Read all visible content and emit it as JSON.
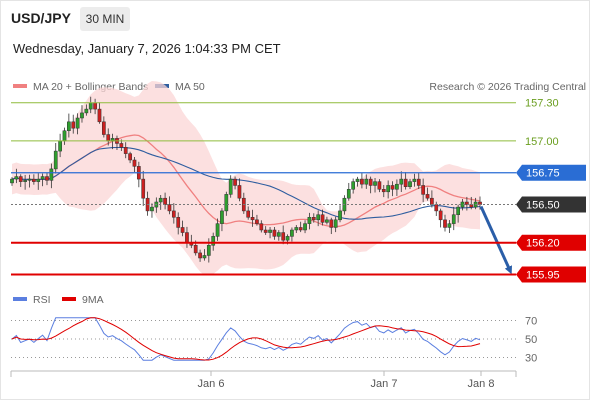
{
  "header": {
    "symbol": "USD/JPY",
    "timeframe": "30 MIN",
    "datetime": "Wednesday, January 7, 2026 1:04:33 PM CET"
  },
  "legend": {
    "items": [
      {
        "label": "MA 20 + Bollinger Bands",
        "color": "#f08080"
      },
      {
        "label": "MA 50",
        "color": "#2e5d9f"
      }
    ],
    "credit": "Research © 2026 Trading Central"
  },
  "rsi_legend": {
    "items": [
      {
        "label": "RSI",
        "color": "#5b7fe0"
      },
      {
        "label": "9MA",
        "color": "#e00000"
      }
    ]
  },
  "chart_data": [
    {
      "type": "candlestick",
      "title": "USD/JPY 30 MIN",
      "x_ticks": [
        "Jan 6",
        "Jan 7",
        "Jan 8"
      ],
      "y_ticks": [
        "157.30",
        "157.00"
      ],
      "ylim": [
        155.86,
        157.4
      ],
      "levels": [
        {
          "value": 157.3,
          "label": "157.30",
          "kind": "resistance",
          "color": "#8fbc3c"
        },
        {
          "value": 157.0,
          "label": "157.00",
          "kind": "resistance",
          "color": "#8fbc3c"
        },
        {
          "value": 156.75,
          "label": "156.75",
          "kind": "pivot",
          "color": "#2a6dd4"
        },
        {
          "value": 156.5,
          "label": "156.50",
          "kind": "last",
          "color": "#333333"
        },
        {
          "value": 156.2,
          "label": "156.20",
          "kind": "support",
          "color": "#e00000"
        },
        {
          "value": 155.95,
          "label": "155.95",
          "kind": "support",
          "color": "#e00000"
        }
      ],
      "forecast_arrow": {
        "from": 156.5,
        "to": 155.95
      },
      "series": [
        {
          "name": "Price",
          "close": [
            156.7,
            156.72,
            156.68,
            156.69,
            156.7,
            156.68,
            156.7,
            156.72,
            156.69,
            156.78,
            156.92,
            157.0,
            157.08,
            157.15,
            157.1,
            157.18,
            157.22,
            157.25,
            157.3,
            157.25,
            157.15,
            157.05,
            157.0,
            157.02,
            156.98,
            156.95,
            156.9,
            156.85,
            156.8,
            156.7,
            156.55,
            156.45,
            156.48,
            156.52,
            156.55,
            156.5,
            156.45,
            156.4,
            156.32,
            156.28,
            156.2,
            156.18,
            156.12,
            156.08,
            156.1,
            156.18,
            156.25,
            156.35,
            156.45,
            156.58,
            156.7,
            156.65,
            156.55,
            156.45,
            156.4,
            156.38,
            156.35,
            156.3,
            156.28,
            156.3,
            156.25,
            156.28,
            156.22,
            156.25,
            156.3,
            156.32,
            156.3,
            156.35,
            156.4,
            156.38,
            156.42,
            156.36,
            156.38,
            156.32,
            156.38,
            156.45,
            156.55,
            156.62,
            156.68,
            156.7,
            156.66,
            156.7,
            156.65,
            156.68,
            156.62,
            156.6,
            156.65,
            156.62,
            156.66,
            156.7,
            156.64,
            156.68,
            156.7,
            156.65,
            156.58,
            156.55,
            156.5,
            156.45,
            156.38,
            156.32,
            156.35,
            156.42,
            156.48,
            156.52,
            156.5,
            156.48,
            156.52,
            156.5
          ]
        },
        {
          "name": "MA 20"
        },
        {
          "name": "MA 50"
        }
      ]
    },
    {
      "type": "line",
      "title": "RSI",
      "x_ticks": [
        "Jan 6",
        "Jan 7",
        "Jan 8"
      ],
      "y_ticks": [
        "70",
        "50",
        "30"
      ],
      "ylim": [
        25,
        75
      ],
      "series": [
        {
          "name": "RSI",
          "color": "#5b7fe0"
        },
        {
          "name": "9MA",
          "color": "#e00000"
        }
      ]
    }
  ]
}
